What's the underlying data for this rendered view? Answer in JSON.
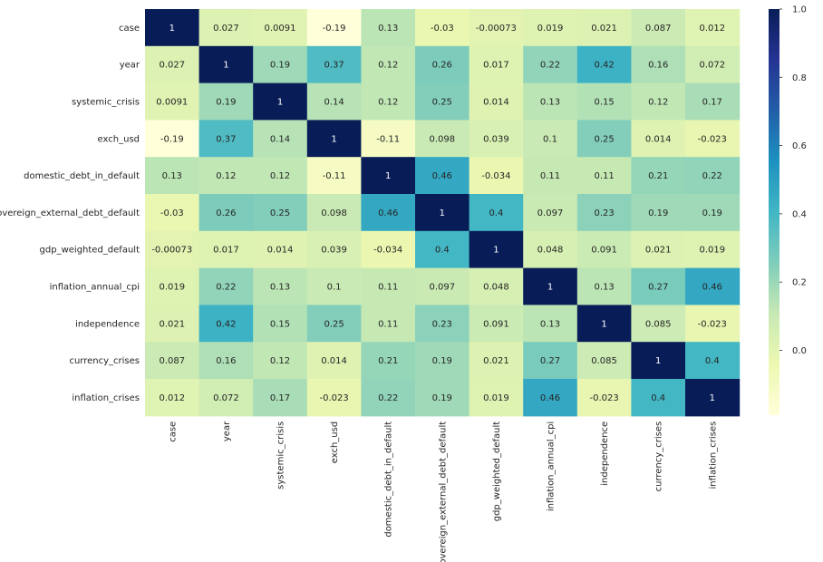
{
  "chart_data": {
    "type": "heatmap",
    "title": "",
    "colormap": "YlGnBu",
    "labels": [
      "case",
      "year",
      "systemic_crisis",
      "exch_usd",
      "domestic_debt_in_default",
      "sovereign_external_debt_default",
      "gdp_weighted_default",
      "inflation_annual_cpi",
      "independence",
      "currency_crises",
      "inflation_crises"
    ],
    "display": [
      [
        "1",
        "0.027",
        "0.0091",
        "-0.19",
        "0.13",
        "-0.03",
        "-0.00073",
        "0.019",
        "0.021",
        "0.087",
        "0.012"
      ],
      [
        "0.027",
        "1",
        "0.19",
        "0.37",
        "0.12",
        "0.26",
        "0.017",
        "0.22",
        "0.42",
        "0.16",
        "0.072"
      ],
      [
        "0.0091",
        "0.19",
        "1",
        "0.14",
        "0.12",
        "0.25",
        "0.014",
        "0.13",
        "0.15",
        "0.12",
        "0.17"
      ],
      [
        "-0.19",
        "0.37",
        "0.14",
        "1",
        "-0.11",
        "0.098",
        "0.039",
        "0.1",
        "0.25",
        "0.014",
        "-0.023"
      ],
      [
        "0.13",
        "0.12",
        "0.12",
        "-0.11",
        "1",
        "0.46",
        "-0.034",
        "0.11",
        "0.11",
        "0.21",
        "0.22"
      ],
      [
        "-0.03",
        "0.26",
        "0.25",
        "0.098",
        "0.46",
        "1",
        "0.4",
        "0.097",
        "0.23",
        "0.19",
        "0.19"
      ],
      [
        "-0.00073",
        "0.017",
        "0.014",
        "0.039",
        "-0.034",
        "0.4",
        "1",
        "0.048",
        "0.091",
        "0.021",
        "0.019"
      ],
      [
        "0.019",
        "0.22",
        "0.13",
        "0.1",
        "0.11",
        "0.097",
        "0.048",
        "1",
        "0.13",
        "0.27",
        "0.46"
      ],
      [
        "0.021",
        "0.42",
        "0.15",
        "0.25",
        "0.11",
        "0.23",
        "0.091",
        "0.13",
        "1",
        "0.085",
        "-0.023"
      ],
      [
        "0.087",
        "0.16",
        "0.12",
        "0.014",
        "0.21",
        "0.19",
        "0.021",
        "0.27",
        "0.085",
        "1",
        "0.4"
      ],
      [
        "0.012",
        "0.072",
        "0.17",
        "-0.023",
        "0.22",
        "0.19",
        "0.019",
        "0.46",
        "-0.023",
        "0.4",
        "1"
      ]
    ],
    "vmin": -0.19,
    "vmax": 1.0,
    "colorbar_ticks": [
      "0.0",
      "0.2",
      "0.4",
      "0.6",
      "0.8",
      "1.0"
    ]
  }
}
